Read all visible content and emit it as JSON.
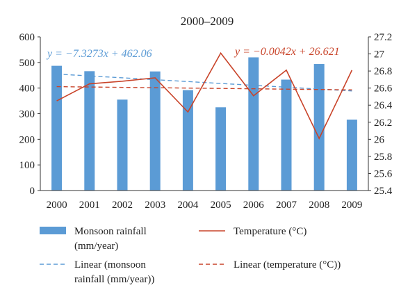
{
  "chart_data": {
    "type": "bar",
    "title": "2000–2009",
    "categories": [
      "2000",
      "2001",
      "2002",
      "2003",
      "2004",
      "2005",
      "2006",
      "2007",
      "2008",
      "2009"
    ],
    "series": [
      {
        "name": "Monsoon rainfall (mm/year)",
        "kind": "bar",
        "axis": "left",
        "values": [
          487,
          466,
          355,
          465,
          392,
          325,
          520,
          433,
          494,
          277
        ]
      },
      {
        "name": "Temperature (°C)",
        "kind": "line",
        "axis": "right",
        "values": [
          26.45,
          26.65,
          26.68,
          26.72,
          26.32,
          27.01,
          26.51,
          26.81,
          26.01,
          26.81
        ]
      },
      {
        "name": "Linear (monsoon rainfall (mm/year))",
        "kind": "trend",
        "axis": "left",
        "slope": -7.3273,
        "intercept": 462.06
      },
      {
        "name": "Linear (temperature (°C))",
        "kind": "trend",
        "axis": "right",
        "slope": -0.0042,
        "intercept": 26.621
      }
    ],
    "y_left": {
      "min": 0,
      "max": 600,
      "ticks": [
        "0",
        "100",
        "200",
        "300",
        "400",
        "500",
        "600"
      ]
    },
    "y_right": {
      "min": 25.4,
      "max": 27.2,
      "ticks": [
        "25.4",
        "25.6",
        "25.8",
        "26",
        "26.2",
        "26.4",
        "26.6",
        "26.8",
        "27",
        "27.2"
      ]
    },
    "equations": {
      "rainfall": "y = −7.3273x + 462.06",
      "temperature": "y = −0.0042x + 26.621"
    },
    "legend_position": "bottom",
    "legend": [
      {
        "label_lines": [
          "Monsoon rainfall",
          "(mm/year)"
        ],
        "style": "bar"
      },
      {
        "label_lines": [
          "Temperature (°C)"
        ],
        "style": "line"
      },
      {
        "label_lines": [
          "Linear (monsoon",
          "rainfall (mm/year))"
        ],
        "style": "dashed-blue"
      },
      {
        "label_lines": [
          "Linear (temperature (°C))"
        ],
        "style": "dashed-red"
      }
    ],
    "colors": {
      "bar": "#5b9bd5",
      "line": "#c9442a",
      "trend_blue": "#5b9bd5",
      "trend_red": "#c9442a"
    }
  }
}
